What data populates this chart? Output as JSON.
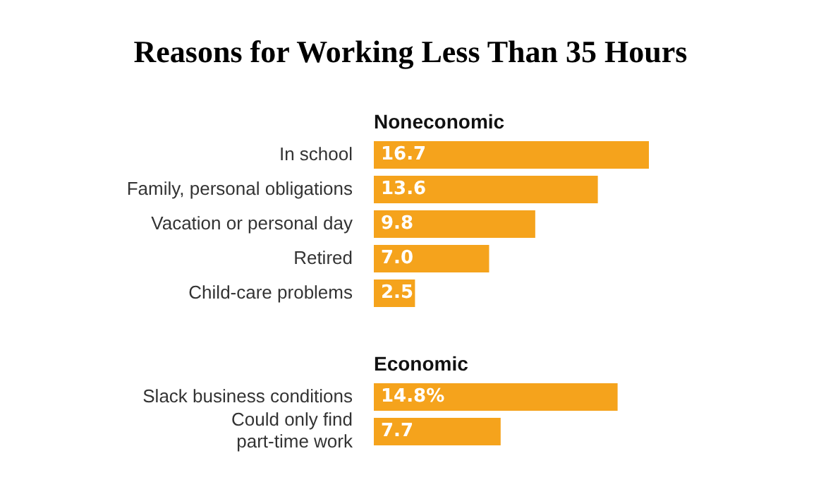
{
  "chart_data": {
    "type": "bar",
    "orientation": "horizontal",
    "title": "Reasons for Working Less Than 35 Hours",
    "categories": [
      null,
      "In school",
      "Family, personal obligations",
      "Vacation or personal day",
      "Retired",
      "Child-care problems",
      null,
      null,
      "Slack business conditions",
      "Could only find\npart-time work"
    ],
    "values": [
      null,
      16.7,
      13.6,
      9.8,
      7.0,
      2.5,
      null,
      null,
      14.8,
      7.7
    ],
    "value_labels": [
      null,
      "16.7",
      "13.6",
      "9.8",
      "7.0",
      "2.5",
      null,
      null,
      "14.8%",
      "7.7"
    ],
    "color": "#f5a31c",
    "annotations": [
      "Noneconomic",
      "Economic"
    ],
    "grid": false,
    "legend": false
  }
}
